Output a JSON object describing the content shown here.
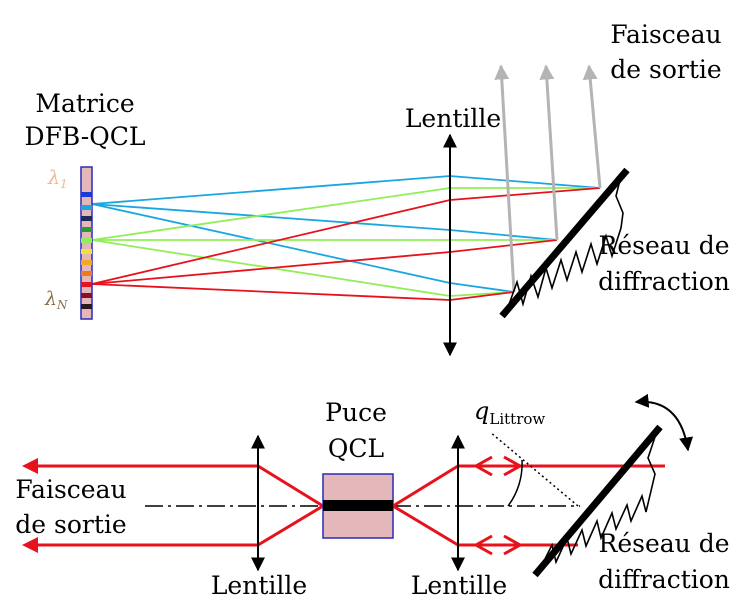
{
  "top": {
    "matrix_label_line1": "Matrice",
    "matrix_label_line2": "DFB-QCL",
    "lambda_1_symbol": "λ",
    "lambda_1_sub": "1",
    "lambda_n_symbol": "λ",
    "lambda_n_sub": "N",
    "lens_label": "Lentille",
    "output_label_line1": "Faisceau",
    "output_label_line2": "de sortie",
    "grating_label_line1": "Réseau de",
    "grating_label_line2": "diffraction"
  },
  "bottom": {
    "chip_label_line1": "Puce",
    "chip_label_line2": "QCL",
    "output_label_line1": "Faisceau",
    "output_label_line2": "de sortie",
    "lens_left_label": "Lentille",
    "lens_right_label": "Lentille",
    "theta_symbol": "q",
    "theta_sub": "Littrow",
    "grating_label_line1": "Réseau de",
    "grating_label_line2": "diffraction"
  },
  "colors": {
    "beam_blue": "#1aa7e0",
    "beam_green": "#90ee58",
    "beam_red": "#e8121c",
    "output_beam": "#b4b4b4",
    "chip_fill": "#e4b8bb",
    "chip_border": "#2a2ab8",
    "lambda_1": "#f2b78f",
    "lambda_n": "#8d6e4a"
  },
  "icons": {
    "lens": "double-arrow-icon",
    "grating": "sawtooth-grating-icon",
    "rotation": "curved-double-arrow-icon"
  }
}
